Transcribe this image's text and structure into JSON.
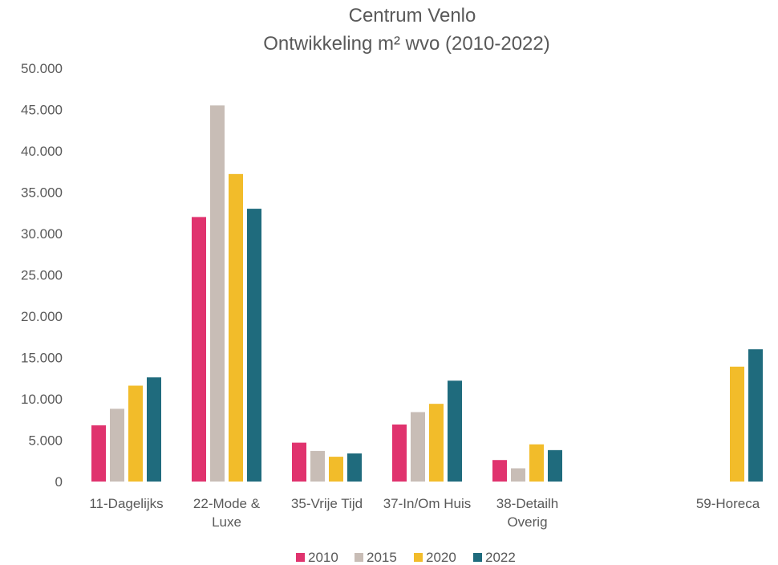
{
  "chart_data": {
    "type": "bar",
    "title": "Centrum Venlo",
    "subtitle": "Ontwikkeling m² wvo (2010-2022)",
    "categories": [
      [
        "11-Dagelijks"
      ],
      [
        "22-Mode &",
        "Luxe"
      ],
      [
        "35-Vrije Tijd"
      ],
      [
        "37-In/Om Huis"
      ],
      [
        "38-Detailh",
        "Overig"
      ],
      [],
      [
        "59-Horeca"
      ]
    ],
    "series": [
      {
        "name": "2010",
        "color": "#e0336e",
        "values": [
          6800,
          32000,
          4700,
          6900,
          2600,
          null,
          null
        ]
      },
      {
        "name": "2015",
        "color": "#c8bdb6",
        "values": [
          8800,
          45500,
          3700,
          8400,
          1600,
          null,
          null
        ]
      },
      {
        "name": "2020",
        "color": "#f2bc2a",
        "values": [
          11600,
          37200,
          3000,
          9400,
          4500,
          null,
          13900
        ]
      },
      {
        "name": "2022",
        "color": "#1f6b7d",
        "values": [
          12600,
          33000,
          3400,
          12200,
          3800,
          null,
          16000
        ]
      }
    ],
    "yticks": [
      "0",
      "5.000",
      "10.000",
      "15.000",
      "20.000",
      "25.000",
      "30.000",
      "35.000",
      "40.000",
      "45.000",
      "50.000"
    ],
    "ylim": [
      0,
      50000
    ],
    "legend_position": "bottom",
    "grid": false
  }
}
